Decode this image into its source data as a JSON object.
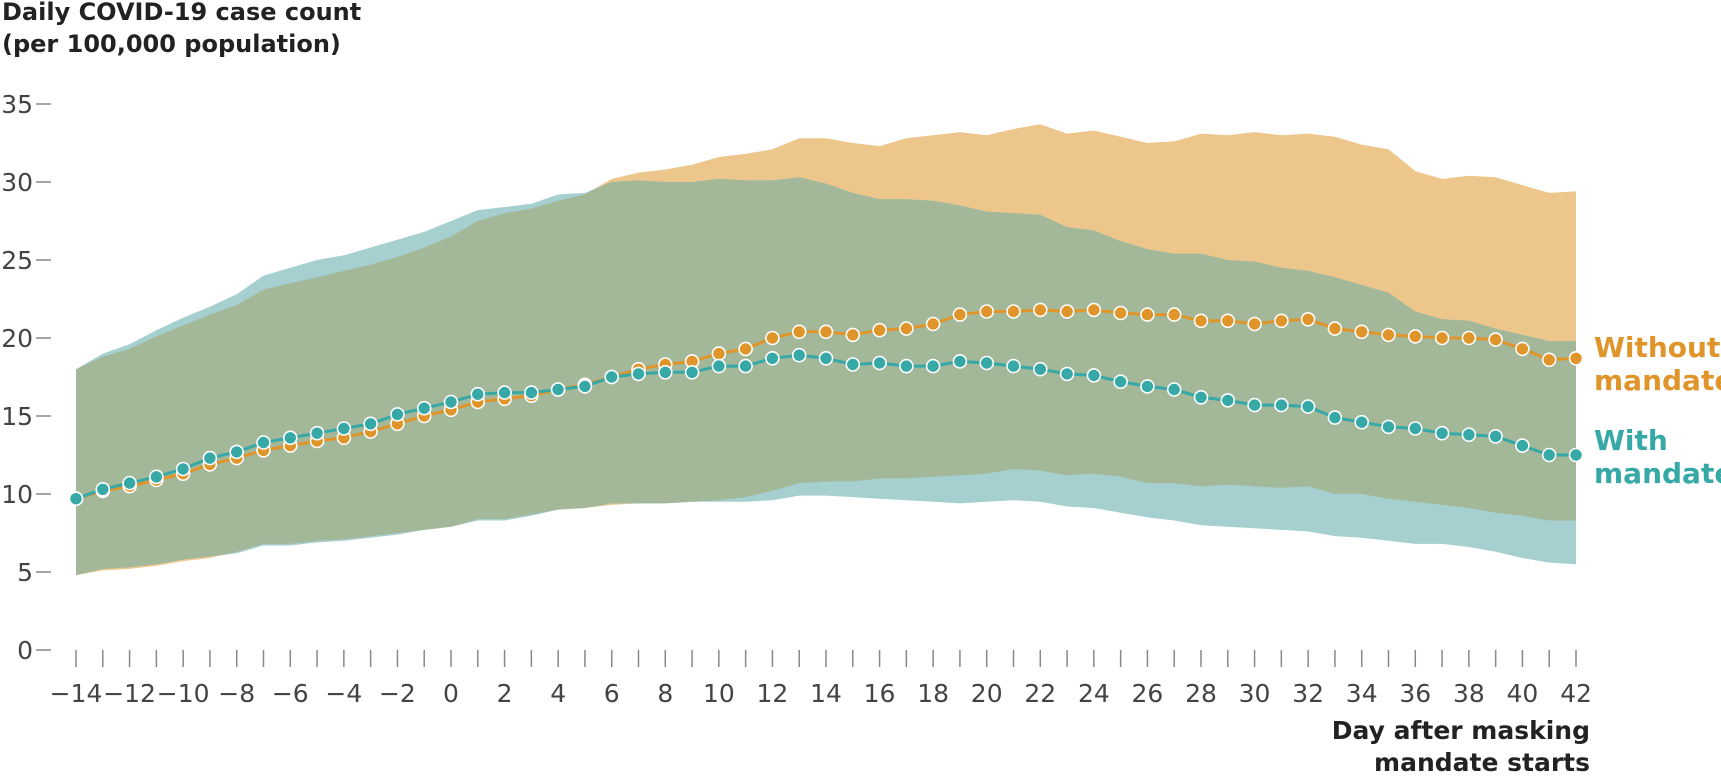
{
  "chart_data": {
    "type": "line",
    "title": "",
    "ylabel_lines": [
      "Daily COVID-19 case count",
      "(per 100,000 population)"
    ],
    "xlabel_lines": [
      "Day after masking",
      "mandate starts"
    ],
    "xlim": [
      -14,
      42
    ],
    "ylim": [
      0,
      35
    ],
    "x_tick_labels": [
      "−14",
      "−12",
      "−10",
      "−8",
      "−6",
      "−4",
      "−2",
      "0",
      "2",
      "4",
      "6",
      "8",
      "10",
      "12",
      "14",
      "16",
      "18",
      "20",
      "22",
      "24",
      "26",
      "28",
      "30",
      "32",
      "34",
      "36",
      "38",
      "40",
      "42"
    ],
    "y_tick_labels": [
      "0",
      "5",
      "10",
      "15",
      "20",
      "25",
      "30",
      "35"
    ],
    "grid": false,
    "colors": {
      "without_line": "#E0952B",
      "without_band": "#EDC68C",
      "with_line": "#36A8A6",
      "with_band": "#A6CFCF",
      "overlap_band": "#A3B799",
      "axis": "#888888"
    },
    "x": [
      -14,
      -13,
      -12,
      -11,
      -10,
      -9,
      -8,
      -7,
      -6,
      -5,
      -4,
      -3,
      -2,
      -1,
      0,
      1,
      2,
      3,
      4,
      5,
      6,
      7,
      8,
      9,
      10,
      11,
      12,
      13,
      14,
      15,
      16,
      17,
      18,
      19,
      20,
      21,
      22,
      23,
      24,
      25,
      26,
      27,
      28,
      29,
      30,
      31,
      32,
      33,
      34,
      35,
      36,
      37,
      38,
      39,
      40,
      41,
      42
    ],
    "series": [
      {
        "name": "Without mandate",
        "label_lines": [
          "Without",
          "mandate"
        ],
        "values": [
          9.7,
          10.2,
          10.5,
          10.9,
          11.3,
          11.9,
          12.3,
          12.8,
          13.1,
          13.4,
          13.6,
          14.0,
          14.5,
          15.0,
          15.4,
          15.9,
          16.1,
          16.3,
          16.7,
          17.0,
          17.5,
          18.0,
          18.3,
          18.5,
          19.0,
          19.3,
          20.0,
          20.4,
          20.4,
          20.2,
          20.5,
          20.6,
          20.9,
          21.5,
          21.7,
          21.7,
          21.8,
          21.7,
          21.8,
          21.6,
          21.5,
          21.5,
          21.1,
          21.1,
          20.9,
          21.1,
          21.2,
          20.6,
          20.4,
          20.2,
          20.1,
          20.0,
          20.0,
          19.9,
          19.3,
          18.6,
          18.7
        ],
        "upper": [
          18.0,
          18.8,
          19.3,
          20.1,
          20.8,
          21.5,
          22.1,
          23.1,
          23.5,
          23.9,
          24.3,
          24.7,
          25.2,
          25.8,
          26.5,
          27.5,
          28.0,
          28.3,
          28.8,
          29.2,
          30.2,
          30.6,
          30.8,
          31.1,
          31.6,
          31.8,
          32.1,
          32.8,
          32.8,
          32.5,
          32.3,
          32.8,
          33.0,
          33.2,
          33.0,
          33.4,
          33.7,
          33.1,
          33.3,
          32.9,
          32.5,
          32.6,
          33.1,
          33.0,
          33.2,
          33.0,
          33.1,
          32.9,
          32.4,
          32.1,
          30.7,
          30.2,
          30.4,
          30.3,
          29.8,
          29.3,
          29.4
        ],
        "lower": [
          4.8,
          5.1,
          5.2,
          5.4,
          5.7,
          5.9,
          6.3,
          6.8,
          6.8,
          7.0,
          7.1,
          7.3,
          7.5,
          7.7,
          7.9,
          8.4,
          8.4,
          8.7,
          9.0,
          9.1,
          9.3,
          9.4,
          9.4,
          9.5,
          9.6,
          9.8,
          10.2,
          10.7,
          10.8,
          10.8,
          11.0,
          11.0,
          11.1,
          11.2,
          11.3,
          11.6,
          11.5,
          11.2,
          11.3,
          11.1,
          10.7,
          10.7,
          10.5,
          10.6,
          10.5,
          10.4,
          10.5,
          10.0,
          10.0,
          9.7,
          9.5,
          9.3,
          9.1,
          8.8,
          8.6,
          8.3,
          8.3
        ]
      },
      {
        "name": "With mandate",
        "label_lines": [
          "With",
          "mandate"
        ],
        "values": [
          9.7,
          10.3,
          10.7,
          11.1,
          11.6,
          12.3,
          12.7,
          13.3,
          13.6,
          13.9,
          14.2,
          14.5,
          15.1,
          15.5,
          15.9,
          16.4,
          16.5,
          16.5,
          16.7,
          16.9,
          17.5,
          17.7,
          17.8,
          17.8,
          18.2,
          18.2,
          18.7,
          18.9,
          18.7,
          18.3,
          18.4,
          18.2,
          18.2,
          18.5,
          18.4,
          18.2,
          18.0,
          17.7,
          17.6,
          17.2,
          16.9,
          16.7,
          16.2,
          16.0,
          15.7,
          15.7,
          15.6,
          14.9,
          14.6,
          14.3,
          14.2,
          13.9,
          13.8,
          13.7,
          13.1,
          12.5,
          12.5
        ],
        "upper": [
          18.0,
          19.0,
          19.6,
          20.5,
          21.3,
          22.0,
          22.8,
          24.0,
          24.5,
          25.0,
          25.3,
          25.8,
          26.3,
          26.8,
          27.5,
          28.2,
          28.4,
          28.6,
          29.2,
          29.3,
          30.0,
          30.1,
          30.0,
          30.0,
          30.2,
          30.1,
          30.1,
          30.3,
          29.9,
          29.3,
          28.9,
          28.9,
          28.8,
          28.5,
          28.1,
          28.0,
          27.9,
          27.1,
          26.9,
          26.2,
          25.7,
          25.4,
          25.4,
          25.0,
          24.9,
          24.5,
          24.3,
          23.9,
          23.4,
          22.9,
          21.7,
          21.2,
          21.1,
          20.6,
          20.2,
          19.8,
          19.8
        ],
        "lower": [
          4.8,
          5.2,
          5.3,
          5.5,
          5.8,
          6.0,
          6.2,
          6.7,
          6.7,
          6.9,
          7.0,
          7.2,
          7.4,
          7.7,
          7.9,
          8.3,
          8.3,
          8.6,
          9.0,
          9.1,
          9.4,
          9.4,
          9.4,
          9.5,
          9.5,
          9.5,
          9.6,
          9.9,
          9.9,
          9.8,
          9.7,
          9.6,
          9.5,
          9.4,
          9.5,
          9.6,
          9.5,
          9.2,
          9.1,
          8.8,
          8.5,
          8.3,
          8.0,
          7.9,
          7.8,
          7.7,
          7.6,
          7.3,
          7.2,
          7.0,
          6.8,
          6.8,
          6.6,
          6.3,
          5.9,
          5.6,
          5.5
        ]
      }
    ]
  }
}
